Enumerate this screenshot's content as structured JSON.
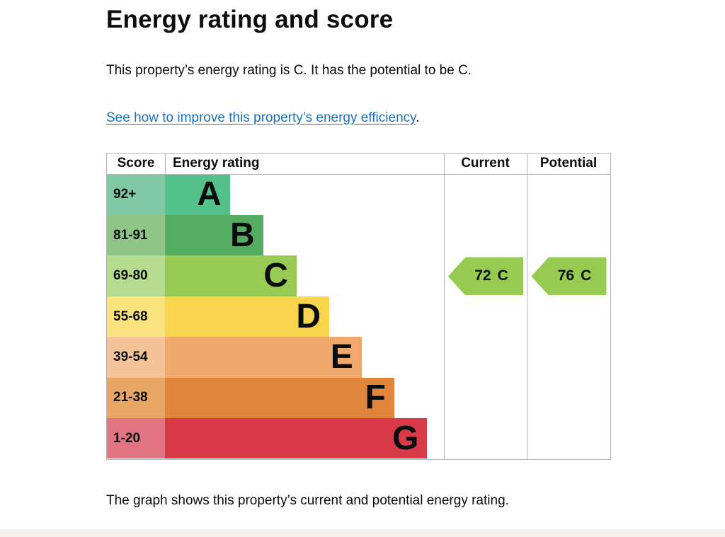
{
  "page": {
    "title": "Energy rating and score",
    "summary": "This property’s energy rating is C. It has the potential to be C.",
    "link_text": "See how to improve this property’s energy efficiency",
    "link_suffix": ".",
    "caption": "The graph shows this property’s current and potential energy rating."
  },
  "colors": {
    "text": "#0b0c0c",
    "link": "#1d70b8",
    "table_border": "#b1b4b6",
    "footer_strip": "#f3f2f1"
  },
  "chart_data": {
    "type": "bar",
    "orientation": "horizontal",
    "title": "Energy rating and score",
    "columns": [
      "Score",
      "Energy rating",
      "Current",
      "Potential"
    ],
    "bands": [
      {
        "letter": "A",
        "score_range": "92+",
        "width_pct": 23.3,
        "color": "#55c18a",
        "score_color": "#81c9a4"
      },
      {
        "letter": "B",
        "score_range": "81-91",
        "width_pct": 35.2,
        "color": "#55ad63",
        "score_color": "#8fc687"
      },
      {
        "letter": "C",
        "score_range": "69-80",
        "width_pct": 47.2,
        "color": "#97cb54",
        "score_color": "#b5db8e"
      },
      {
        "letter": "D",
        "score_range": "55-68",
        "width_pct": 58.9,
        "color": "#f7d44c",
        "score_color": "#fae37e"
      },
      {
        "letter": "E",
        "score_range": "39-54",
        "width_pct": 70.5,
        "color": "#f0a96c",
        "score_color": "#f4c498"
      },
      {
        "letter": "F",
        "score_range": "21-38",
        "width_pct": 82.2,
        "color": "#e0853c",
        "score_color": "#e9a665"
      },
      {
        "letter": "G",
        "score_range": "1-20",
        "width_pct": 94.0,
        "color": "#d93a48",
        "score_color": "#e17480"
      }
    ],
    "current": {
      "value": "72",
      "band": "C"
    },
    "potential": {
      "value": "76",
      "band": "C"
    },
    "arrow_color": "#97ca51"
  }
}
